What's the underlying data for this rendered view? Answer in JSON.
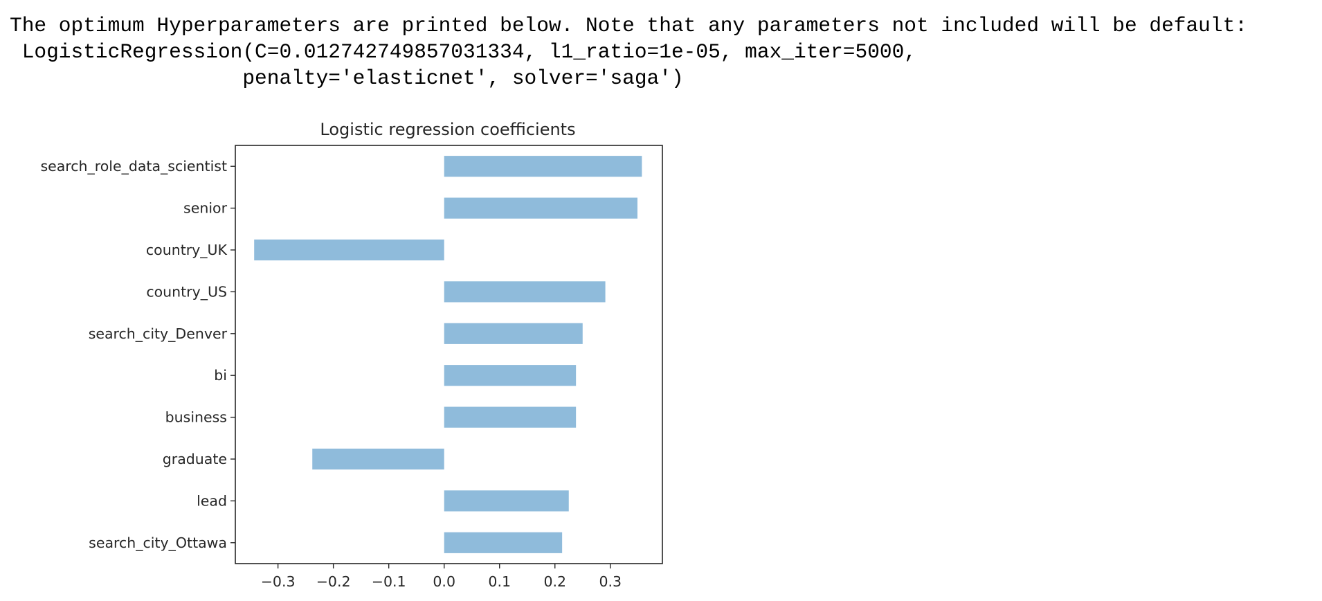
{
  "output": {
    "lines": [
      "The optimum Hyperparameters are printed below. Note that any parameters not included will be default:",
      " LogisticRegression(C=0.012742749857031334, l1_ratio=1e-05, max_iter=5000,",
      "                   penalty='elasticnet', solver='saga')"
    ]
  },
  "chart_data": {
    "type": "bar",
    "orientation": "horizontal",
    "title": "Logistic regression coefficients",
    "xlabel": "",
    "ylabel": "",
    "categories": [
      "search_role_data_scientist",
      "senior",
      "country_UK",
      "country_US",
      "search_city_Denver",
      "bi",
      "business",
      "graduate",
      "lead",
      "search_city_Ottawa"
    ],
    "values": [
      0.357,
      0.349,
      -0.343,
      0.291,
      0.25,
      0.238,
      0.238,
      -0.238,
      0.225,
      0.213
    ],
    "xticks": [
      -0.3,
      -0.2,
      -0.1,
      0.0,
      0.1,
      0.2,
      0.3
    ],
    "xtick_labels": [
      "−0.3",
      "−0.2",
      "−0.1",
      "0.0",
      "0.1",
      "0.2",
      "0.3"
    ],
    "xlim": [
      -0.377,
      0.394
    ],
    "bar_color": "#8fbbdb",
    "grid": false,
    "legend": "none"
  }
}
